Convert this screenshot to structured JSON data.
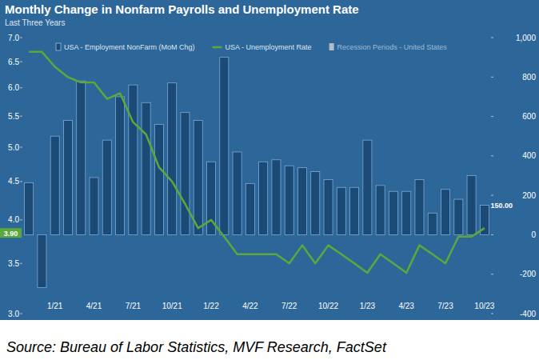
{
  "chart_data": {
    "type": "bar",
    "title": "Monthly Change in Nonfarm Payrolls and Unemployment Rate",
    "subtitle": "Last Three Years",
    "source": "Source: Bureau of Labor Statistics, MVF Research, FactSet",
    "categories": [
      null,
      null,
      "1/21",
      null,
      null,
      "4/21",
      null,
      null,
      "7/21",
      null,
      null,
      "10/21",
      null,
      null,
      "1/22",
      null,
      null,
      "4/22",
      null,
      null,
      "7/22",
      null,
      null,
      "10/22",
      null,
      null,
      "1/23",
      null,
      null,
      "4/23",
      null,
      null,
      "7/23",
      null,
      null,
      "10/23"
    ],
    "series": [
      {
        "name": "USA - Employment NonFarm (MoM Chg)",
        "type": "bar",
        "axis": "y2",
        "color": "#1b4a76",
        "values": [
          264,
          -268,
          500,
          580,
          780,
          290,
          480,
          700,
          760,
          670,
          560,
          770,
          620,
          580,
          370,
          900,
          420,
          260,
          370,
          380,
          350,
          340,
          320,
          280,
          240,
          240,
          480,
          250,
          220,
          220,
          280,
          110,
          230,
          180,
          300,
          150
        ],
        "value_labels": [
          null,
          null,
          null,
          null,
          null,
          null,
          null,
          null,
          null,
          null,
          null,
          null,
          null,
          null,
          null,
          null,
          null,
          null,
          null,
          null,
          null,
          null,
          null,
          null,
          null,
          null,
          null,
          null,
          null,
          null,
          null,
          null,
          null,
          null,
          null,
          "150.00"
        ]
      },
      {
        "name": "USA - Unemployment Rate",
        "type": "line",
        "axis": "y",
        "color": "#5ca83b",
        "values": [
          6.7,
          6.7,
          6.4,
          6.2,
          6.1,
          6.1,
          5.8,
          5.9,
          5.4,
          5.2,
          4.7,
          4.5,
          4.2,
          3.9,
          4.0,
          3.8,
          3.6,
          3.6,
          3.6,
          3.6,
          3.5,
          3.7,
          3.5,
          3.7,
          3.6,
          3.5,
          3.4,
          3.6,
          3.5,
          3.4,
          3.7,
          3.6,
          3.5,
          3.8,
          3.8,
          3.9
        ],
        "value_labels": [
          null,
          null,
          null,
          null,
          null,
          null,
          null,
          null,
          null,
          null,
          null,
          null,
          null,
          null,
          null,
          null,
          null,
          null,
          null,
          null,
          null,
          null,
          null,
          null,
          null,
          null,
          null,
          null,
          null,
          null,
          null,
          null,
          null,
          null,
          null,
          "3.90"
        ]
      },
      {
        "name": "Recession Periods - United States",
        "type": "area",
        "color": "#b4bcc4",
        "values": [
          null,
          null,
          null,
          null,
          null,
          null,
          null,
          null,
          null,
          null,
          null,
          null,
          null,
          null,
          null,
          null,
          null,
          null,
          null,
          null,
          null,
          null,
          null,
          null,
          null,
          null,
          null,
          null,
          null,
          null,
          null,
          null,
          null,
          null,
          null,
          null
        ]
      }
    ],
    "ylim": [
      3,
      7
    ],
    "yticks": [
      {
        "value": 3,
        "label": "3.0"
      },
      3.5,
      {
        "value": 4,
        "label": "4.0"
      },
      4.5,
      {
        "value": 5,
        "label": "5.0"
      },
      5.5,
      {
        "value": 6,
        "label": "6.0"
      },
      6.5,
      {
        "value": 7,
        "label": "7.0"
      }
    ],
    "y2lim": [
      -400,
      1000
    ],
    "y2ticks": [
      -400,
      -200,
      0,
      200,
      400,
      600,
      800,
      {
        "value": 1000,
        "label": "1,000"
      }
    ],
    "log": "y",
    "grid": false,
    "legend": "top"
  }
}
